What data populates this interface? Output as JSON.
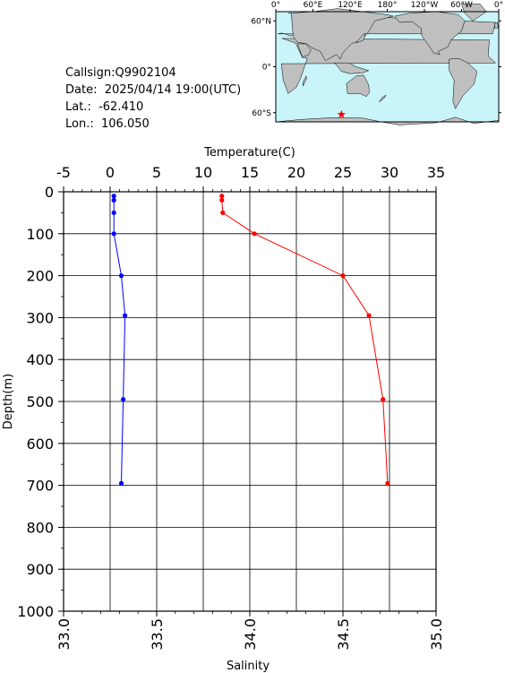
{
  "info": {
    "callsign_label": "Callsign:",
    "callsign": "Q9902104",
    "date_label": "Date:",
    "date": "2025/04/14 19:00(UTC)",
    "lat_label": "Lat.:",
    "lat": "-62.410",
    "lon_label": "Lon.:",
    "lon": "106.050"
  },
  "map": {
    "lon_tick_labels": [
      "0°",
      "60°E",
      "120°E",
      "180°",
      "120°W",
      "60°W",
      "0°"
    ],
    "lat_tick_labels": [
      "60°N",
      "0°",
      "60°S"
    ],
    "ocean_color": "#c8f4fa",
    "land_color": "#bfbfbf",
    "marker": {
      "lon": 106.05,
      "lat": -62.41,
      "color": "#ff0000"
    }
  },
  "chart_data": {
    "type": "line",
    "top_axis_label": "Temperature(C)",
    "bottom_axis_label": "Salinity",
    "left_axis_label": "Depth(m)",
    "temperature_range": [
      -5,
      35
    ],
    "temperature_ticks": [
      "-5",
      "0",
      "5",
      "10",
      "15",
      "20",
      "25",
      "30",
      "35"
    ],
    "salinity_range": [
      33.0,
      35.0
    ],
    "salinity_ticks": [
      "33.0",
      "33.5",
      "34.0",
      "34.5",
      "35.0"
    ],
    "depth_range": [
      0,
      1000
    ],
    "depth_ticks": [
      "0",
      "100",
      "200",
      "300",
      "400",
      "500",
      "600",
      "700",
      "800",
      "900",
      "1000"
    ],
    "grid": true,
    "depth": [
      10,
      20,
      50,
      100,
      200,
      295,
      495,
      695
    ],
    "series": [
      {
        "quantity": "temperature",
        "color": "#ff0000",
        "values": [
          12.0,
          12.0,
          12.1,
          15.5,
          25.0,
          27.8,
          29.3,
          29.8
        ]
      },
      {
        "quantity": "salinity",
        "color": "#0000ff",
        "values": [
          33.27,
          33.27,
          33.27,
          33.27,
          33.31,
          33.33,
          33.32,
          33.31
        ]
      }
    ]
  }
}
